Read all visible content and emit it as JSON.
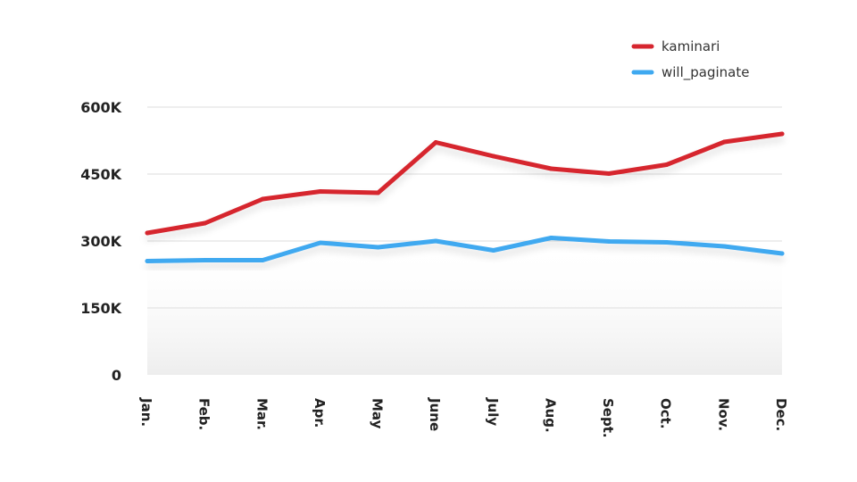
{
  "chart_data": {
    "type": "line",
    "categories": [
      "Jan.",
      "Feb.",
      "Mar.",
      "Apr.",
      "May",
      "June",
      "July",
      "Aug.",
      "Sept.",
      "Oct.",
      "Nov.",
      "Dec."
    ],
    "series": [
      {
        "name": "kaminari",
        "color": "#d6262f",
        "values": [
          318000,
          340000,
          394000,
          411000,
          408000,
          521000,
          490000,
          462000,
          451000,
          471000,
          522000,
          540000
        ]
      },
      {
        "name": "will_paginate",
        "color": "#3fa9f0",
        "values": [
          255000,
          257000,
          257000,
          296000,
          286000,
          300000,
          279000,
          307000,
          299000,
          297000,
          288000,
          272000
        ]
      }
    ],
    "yticks": [
      {
        "value": 600000,
        "label": "600K"
      },
      {
        "value": 450000,
        "label": "450K"
      },
      {
        "value": 300000,
        "label": "300K"
      },
      {
        "value": 150000,
        "label": "150K"
      },
      {
        "value": 0,
        "label": "0"
      }
    ],
    "ylim": [
      0,
      600000
    ],
    "grid": true,
    "legend_position": "top-right"
  }
}
